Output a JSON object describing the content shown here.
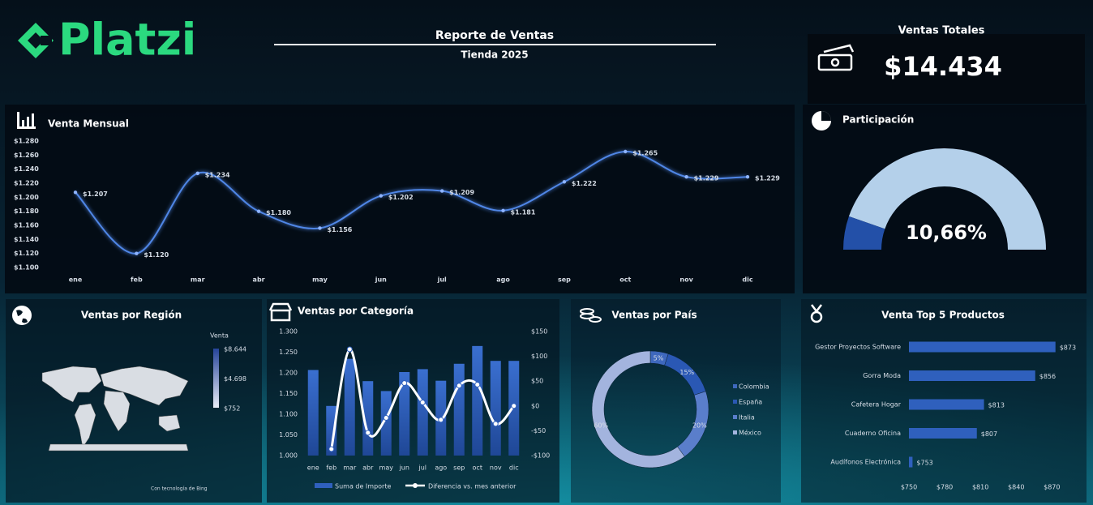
{
  "header": {
    "logo": "Platzi",
    "title": "Reporte de Ventas",
    "subtitle": "Tienda 2025"
  },
  "kpi": {
    "title": "Ventas Totales",
    "value": "$14.434"
  },
  "chart_data": [
    {
      "type": "line",
      "title": "Venta Mensual",
      "color": "#4f86e6",
      "categories": [
        "ene",
        "feb",
        "mar",
        "abr",
        "may",
        "jun",
        "jul",
        "ago",
        "sep",
        "oct",
        "nov",
        "dic"
      ],
      "values": [
        1207,
        1120,
        1234,
        1180,
        1156,
        1202,
        1209,
        1181,
        1222,
        1265,
        1229,
        1229
      ],
      "value_labels": [
        "$1.207",
        "$1.120",
        "$1.234",
        "$1.180",
        "$1.156",
        "$1.202",
        "$1.209",
        "$1.181",
        "$1.222",
        "$1.265",
        "$1.229",
        "$1.229"
      ],
      "ylim": [
        1100,
        1280
      ],
      "yticks": [
        {
          "value": 1100,
          "label": "$1.100"
        },
        {
          "value": 1120,
          "label": "$1.120"
        },
        {
          "value": 1140,
          "label": "$1.140"
        },
        {
          "value": 1160,
          "label": "$1.160"
        },
        {
          "value": 1180,
          "label": "$1.180"
        },
        {
          "value": 1200,
          "label": "$1.200"
        },
        {
          "value": 1220,
          "label": "$1.220"
        },
        {
          "value": 1240,
          "label": "$1.240"
        },
        {
          "value": 1260,
          "label": "$1.260"
        },
        {
          "value": 1280,
          "label": "$1.280"
        }
      ]
    },
    {
      "type": "gauge",
      "title": "Participación",
      "value": 10.66,
      "value_label": "10,66%",
      "ylim": [
        0,
        100
      ],
      "colors": [
        "#2350a8",
        "#b4d0ea"
      ]
    },
    {
      "type": "map",
      "title": "Ventas por Región",
      "legend_title": "Venta",
      "color_scale": [
        {
          "value": 8644,
          "label": "$8.644"
        },
        {
          "value": 4698,
          "label": "$4.698"
        },
        {
          "value": 752,
          "label": "$752"
        }
      ],
      "credit": "Con tecnología de Bing"
    },
    {
      "type": "combo",
      "title": "Ventas por Categoría",
      "categories": [
        "ene",
        "feb",
        "mar",
        "abr",
        "may",
        "jun",
        "jul",
        "ago",
        "sep",
        "oct",
        "nov",
        "dic"
      ],
      "series": [
        {
          "name": "Suma de Importe",
          "color": "#2f60bd",
          "values": [
            1207,
            1120,
            1234,
            1180,
            1156,
            1202,
            1209,
            1181,
            1222,
            1265,
            1229,
            1229
          ]
        },
        {
          "name": "Diferencia vs. mes anterior",
          "color": "#ffffff",
          "axis": "y2",
          "values": [
            null,
            -87,
            114,
            -54,
            -24,
            46,
            7,
            -28,
            41,
            43,
            -36,
            0
          ]
        }
      ],
      "ylim": [
        1000,
        1300
      ],
      "yticks": [
        {
          "value": 1000,
          "label": "1.000"
        },
        {
          "value": 1050,
          "label": "1.050"
        },
        {
          "value": 1100,
          "label": "1.100"
        },
        {
          "value": 1150,
          "label": "1.150"
        },
        {
          "value": 1200,
          "label": "1.200"
        },
        {
          "value": 1250,
          "label": "1.250"
        },
        {
          "value": 1300,
          "label": "1.300"
        }
      ],
      "y2lim": [
        -100,
        150
      ],
      "y2ticks": [
        {
          "value": -100,
          "label": "-$100"
        },
        {
          "value": -50,
          "label": "-$50"
        },
        {
          "value": 0,
          "label": "$0"
        },
        {
          "value": 50,
          "label": "$50"
        },
        {
          "value": 100,
          "label": "$100"
        },
        {
          "value": 150,
          "label": "$150"
        }
      ]
    },
    {
      "type": "donut",
      "title": "Ventas por País",
      "categories": [
        "Colombia",
        "España",
        "Italia",
        "México"
      ],
      "values": [
        5,
        15,
        20,
        60
      ],
      "value_labels": [
        "5%",
        "15%",
        "20%",
        "60%"
      ],
      "colors": [
        "#3e68bd",
        "#2a58b4",
        "#5a7ecb",
        "#a3b4de"
      ]
    },
    {
      "type": "hbar",
      "title": "Venta Top 5 Productos",
      "color": "#2f60bd",
      "categories": [
        "Gestor Proyectos Software",
        "Gorra Moda",
        "Cafetera Hogar",
        "Cuaderno Oficina",
        "Audífonos Electrónica"
      ],
      "values": [
        873,
        856,
        813,
        807,
        753
      ],
      "value_labels": [
        "$873",
        "$856",
        "$813",
        "$807",
        "$753"
      ],
      "xlim": [
        750,
        880
      ],
      "xticks": [
        {
          "value": 750,
          "label": "$750"
        },
        {
          "value": 780,
          "label": "$780"
        },
        {
          "value": 810,
          "label": "$810"
        },
        {
          "value": 840,
          "label": "$840"
        },
        {
          "value": 870,
          "label": "$870"
        }
      ]
    }
  ]
}
